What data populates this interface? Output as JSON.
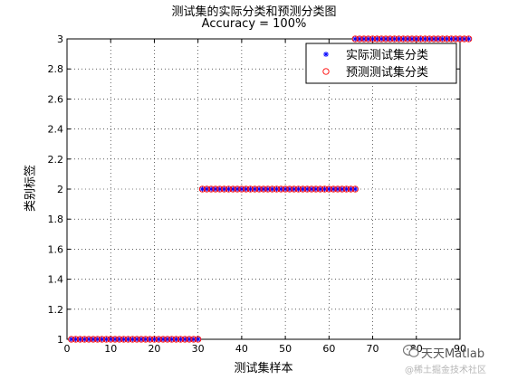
{
  "chart_data": {
    "type": "scatter",
    "title": "测试集的实际分类和预测分类图",
    "subtitle": "Accuracy = 100%",
    "xlabel": "测试集样本",
    "ylabel": "类别标签",
    "xlim": [
      0,
      90
    ],
    "ylim": [
      1,
      3
    ],
    "xticks": [
      "0",
      "10",
      "20",
      "30",
      "40",
      "50",
      "60",
      "70",
      "80",
      "90"
    ],
    "yticks": [
      "1",
      "1.2",
      "1.4",
      "1.6",
      "1.8",
      "2",
      "2.2",
      "2.4",
      "2.6",
      "2.8",
      "3"
    ],
    "grid": true,
    "legend_position": "top-right",
    "series": [
      {
        "name": "实际测试集分类",
        "marker": "asterisk",
        "color": "#0000ff",
        "segments": [
          {
            "x_start": 1,
            "x_end": 30,
            "y": 1
          },
          {
            "x_start": 31,
            "x_end": 66,
            "y": 2
          },
          {
            "x_start": 66,
            "x_end": 92,
            "y": 3
          }
        ]
      },
      {
        "name": "预测测试集分类",
        "marker": "circle",
        "color": "#ff0000",
        "segments": [
          {
            "x_start": 1,
            "x_end": 30,
            "y": 1
          },
          {
            "x_start": 31,
            "x_end": 66,
            "y": 2
          },
          {
            "x_start": 66,
            "x_end": 92,
            "y": 3
          }
        ]
      }
    ]
  },
  "watermark": {
    "main": "天天Matlab",
    "sub": "@稀土掘金技术社区"
  }
}
